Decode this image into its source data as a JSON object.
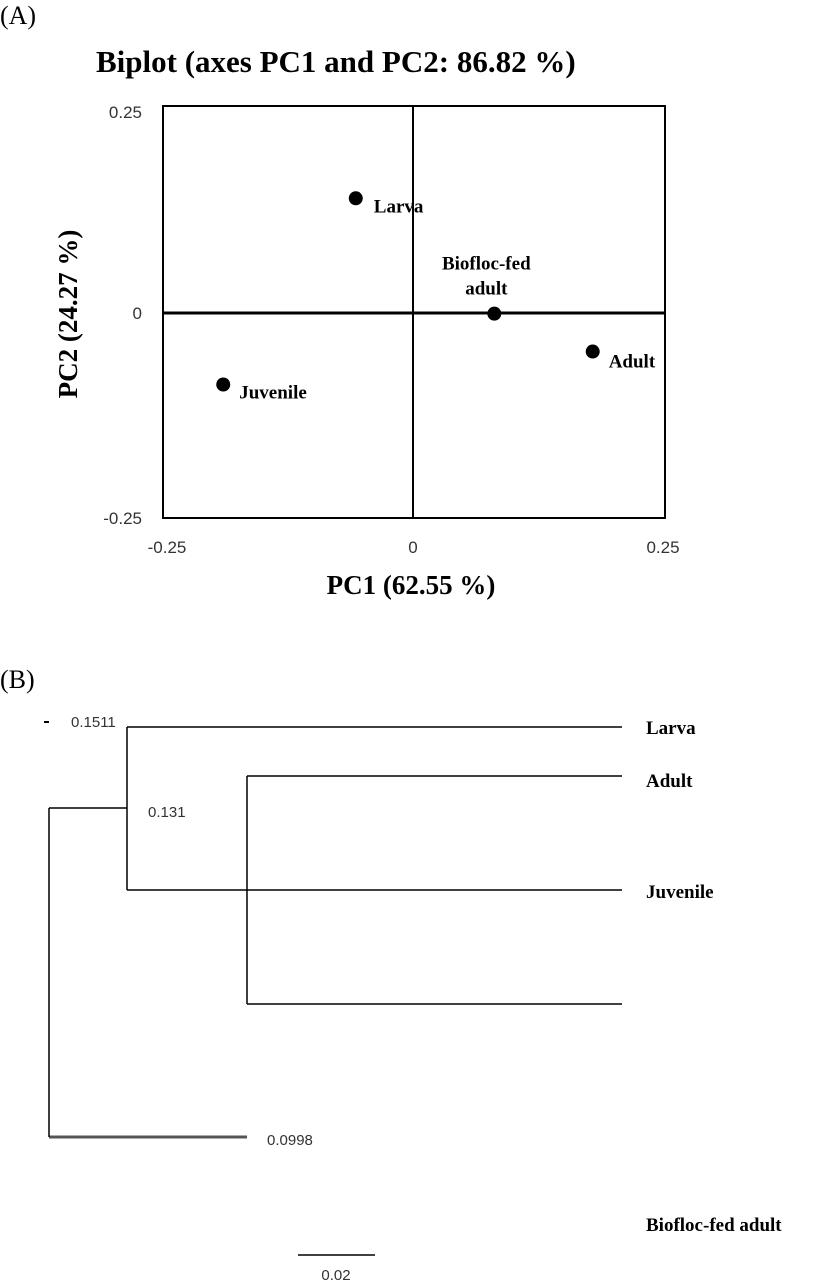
{
  "panel_a_label": "(A)",
  "panel_b_label": "(B)",
  "chart_data": [
    {
      "type": "scatter",
      "title": "Biplot (axes PC1 and PC2: 86.82 %)",
      "xlabel": "PC1 (62.55 %)",
      "ylabel": "PC2 (24.27 %)",
      "xlim": [
        -0.25,
        0.25
      ],
      "ylim": [
        -0.25,
        0.25
      ],
      "x_ticks": [
        "-0.25",
        "0",
        "0.25"
      ],
      "y_ticks": [
        "0.25",
        "0",
        "-0.25"
      ],
      "grid": false,
      "points": [
        {
          "label": "Larva",
          "x": -0.058,
          "y": 0.138
        },
        {
          "label": "Biofloc-fed adult",
          "x": 0.08,
          "y": -0.002
        },
        {
          "label": "Adult",
          "x": 0.178,
          "y": -0.048
        },
        {
          "label": "Juvenile",
          "x": -0.19,
          "y": -0.088
        }
      ]
    },
    {
      "type": "dendrogram",
      "leaves": [
        "Larva",
        "Juvenile",
        "Adult",
        "Biofloc-fed adult"
      ],
      "nodes": [
        {
          "label": "0.131",
          "children": [
            "Larva",
            "Juvenile"
          ]
        },
        {
          "label": "0.0998",
          "children": [
            "Adult",
            "Biofloc-fed adult"
          ]
        },
        {
          "label": "0.1511",
          "children": [
            "0.131",
            "0.0998"
          ]
        }
      ],
      "scale_bar_label": "0.02"
    }
  ]
}
